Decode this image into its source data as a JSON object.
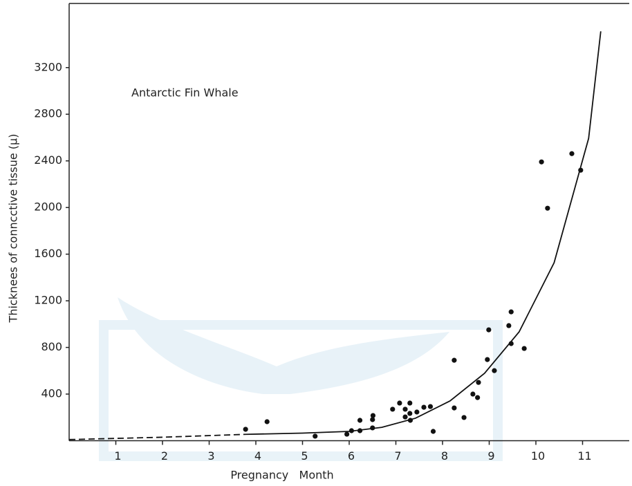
{
  "chart_data": {
    "type": "scatter",
    "annotation": "Antarctic Fin Whale",
    "x_label": "Pregnancy   Month",
    "y_label": "Thicknees of conncctive tissue (μ)",
    "xlim": [
      0,
      12
    ],
    "xticks": [
      1,
      2,
      3,
      4,
      5,
      6,
      7,
      8,
      9,
      10,
      11
    ],
    "ylim": [
      0,
      3750
    ],
    "yticks": [
      400,
      800,
      1200,
      1600,
      2000,
      2400,
      2800,
      3200
    ],
    "color": "#111111",
    "x": [
      3.78,
      4.24,
      5.27,
      5.95,
      6.05,
      6.23,
      6.23,
      6.5,
      6.5,
      6.51,
      6.93,
      7.08,
      7.2,
      7.2,
      7.3,
      7.3,
      7.31,
      7.45,
      7.6,
      7.74,
      7.8,
      8.25,
      8.25,
      8.46,
      8.65,
      8.75,
      8.77,
      8.96,
      8.99,
      9.11,
      9.42,
      9.47,
      9.47,
      9.75,
      10.12,
      10.25,
      10.77,
      10.96
    ],
    "values": [
      98,
      163,
      39,
      56,
      86,
      86,
      175,
      110,
      181,
      216,
      270,
      323,
      270,
      204,
      323,
      234,
      175,
      246,
      287,
      293,
      80,
      690,
      281,
      199,
      400,
      370,
      500,
      696,
      951,
      601,
      987,
      1105,
      833,
      791,
      2391,
      1994,
      2462,
      2320
    ],
    "fit_segments": [
      {
        "linestyle": "dashed",
        "x": [
          0,
          2,
          3.8
        ],
        "values": [
          10,
          30,
          55
        ]
      },
      {
        "linestyle": "solid",
        "x": [
          3.8,
          5,
          6,
          6.7,
          7.42,
          8.16,
          8.9,
          9.64,
          10.39,
          11.13,
          11.39
        ],
        "values": [
          55,
          65,
          80,
          115,
          193,
          341,
          578,
          933,
          1526,
          2593,
          3511
        ]
      }
    ]
  }
}
